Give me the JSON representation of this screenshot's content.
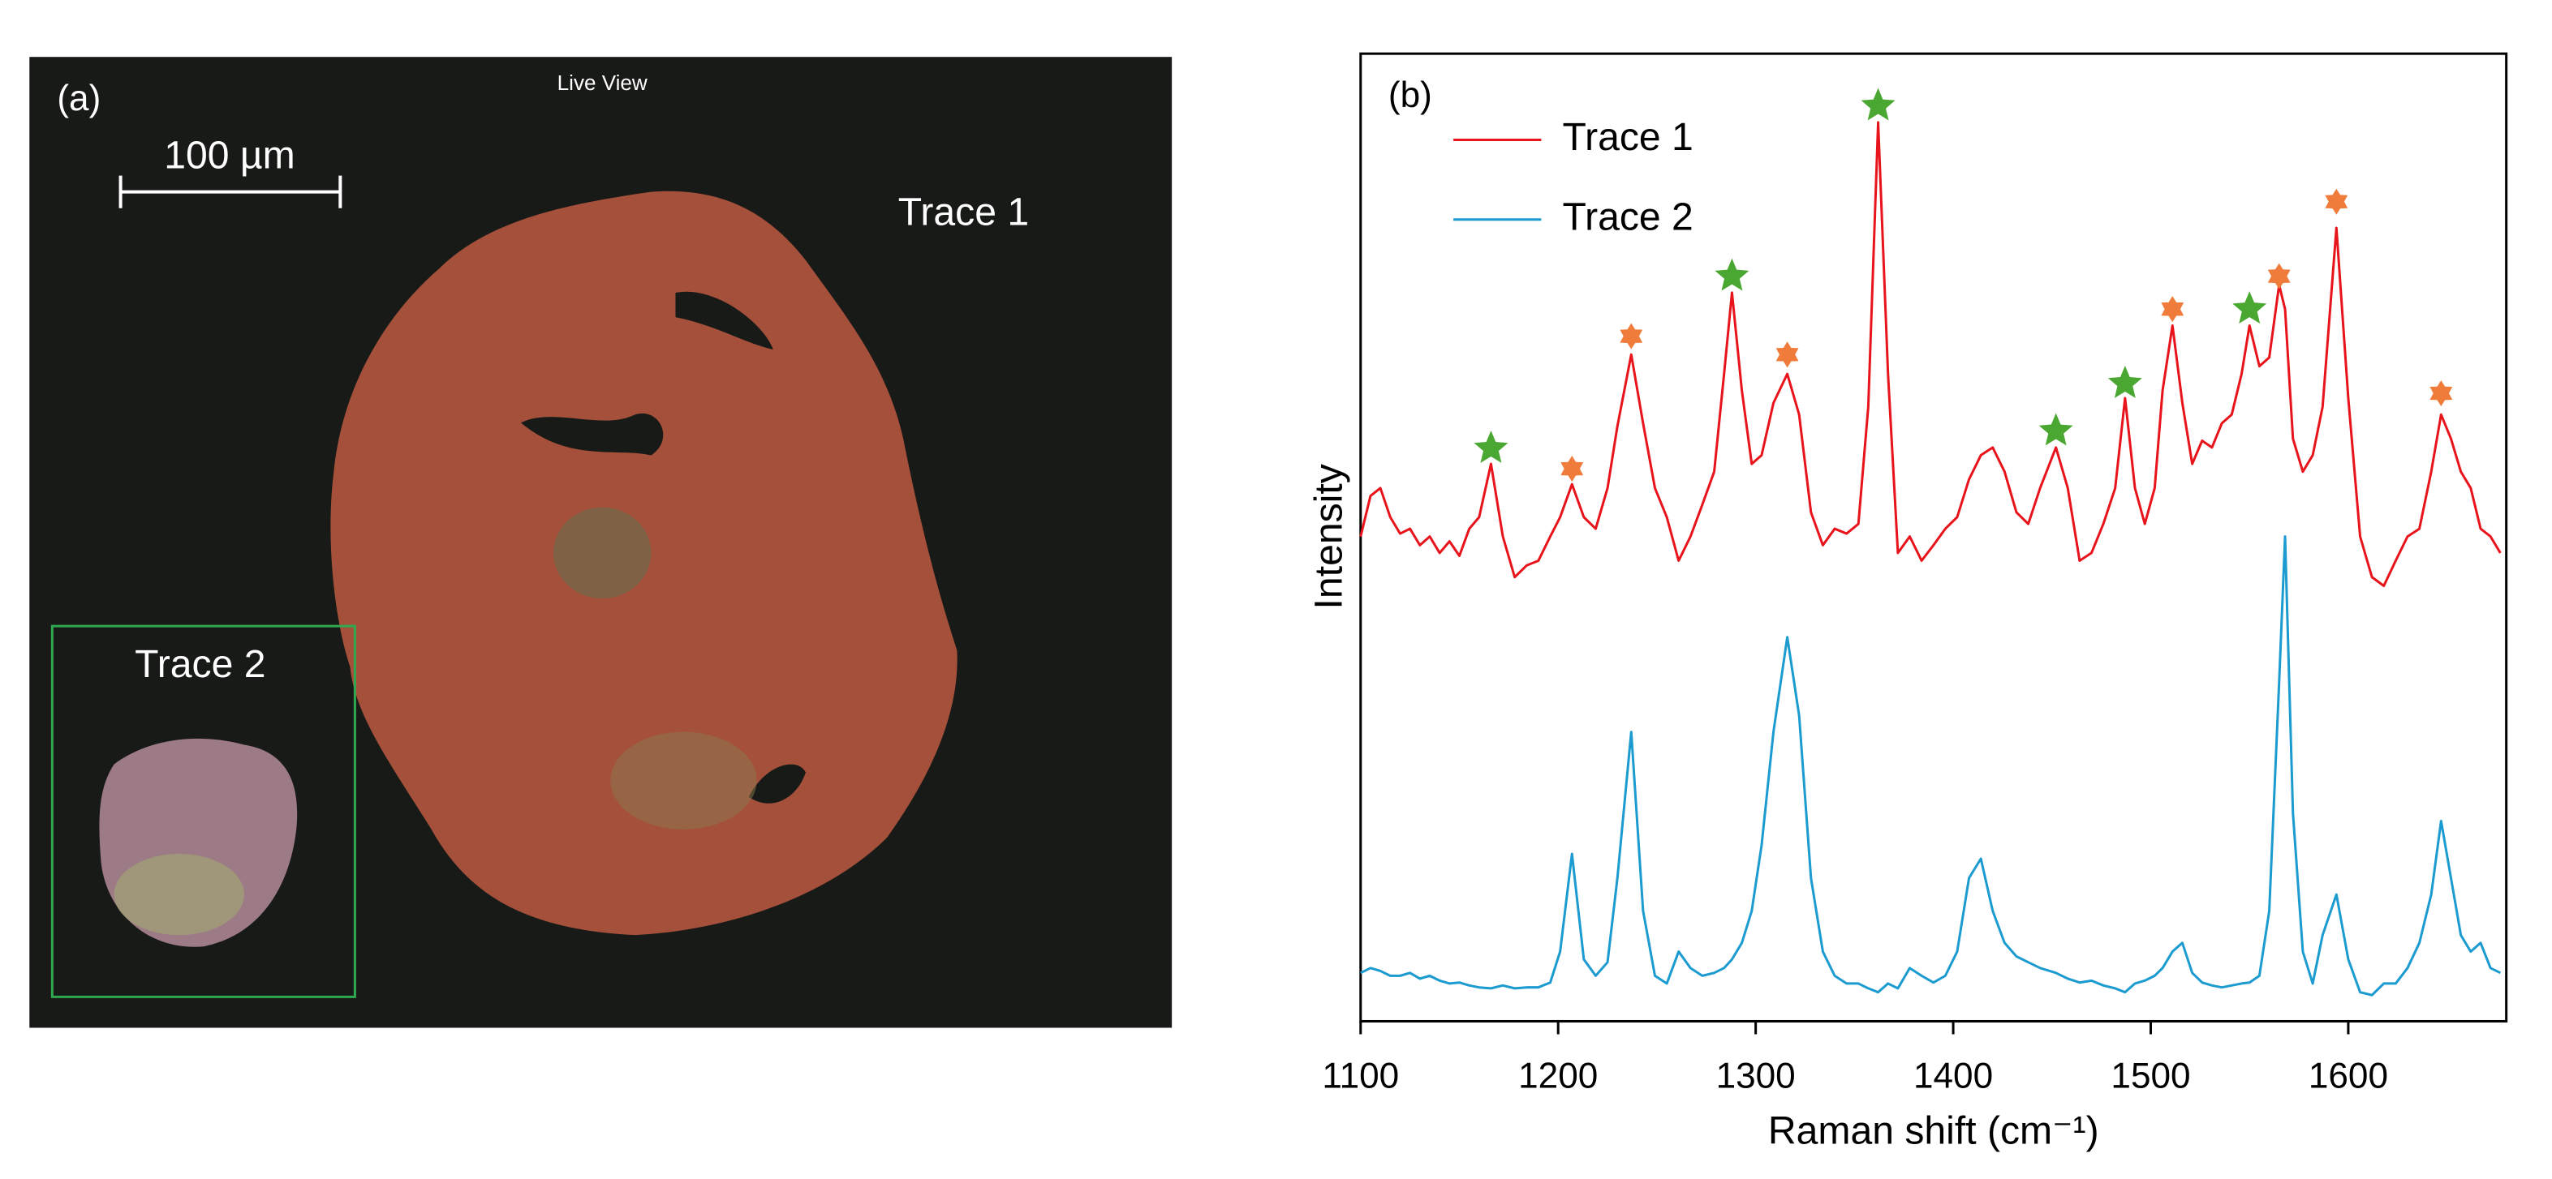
{
  "panel_a": {
    "label": "(a)",
    "caption": "Live View",
    "scale_bar": "100 µm",
    "trace_labels": [
      "Trace 1",
      "Trace 2"
    ]
  },
  "chart_data": {
    "type": "line",
    "panel_label": "(b)",
    "x_label": "Raman shift (cm⁻¹)",
    "y_label": "Intensity",
    "x": [
      1100,
      1105,
      1110,
      1115,
      1120,
      1125,
      1130,
      1135,
      1140,
      1145,
      1150,
      1155,
      1160,
      1166,
      1172,
      1178,
      1184,
      1190,
      1196,
      1201,
      1207,
      1213,
      1219,
      1225,
      1230,
      1237,
      1243,
      1249,
      1255,
      1261,
      1267,
      1273,
      1279,
      1284,
      1288,
      1293,
      1298,
      1303,
      1309,
      1316,
      1322,
      1328,
      1334,
      1340,
      1346,
      1352,
      1357,
      1362,
      1367,
      1372,
      1378,
      1384,
      1390,
      1396,
      1402,
      1408,
      1414,
      1420,
      1426,
      1432,
      1438,
      1444,
      1452,
      1458,
      1464,
      1470,
      1476,
      1482,
      1487,
      1492,
      1497,
      1502,
      1506,
      1511,
      1516,
      1521,
      1526,
      1531,
      1536,
      1541,
      1546,
      1550,
      1555,
      1560,
      1565,
      1568,
      1572,
      1577,
      1582,
      1587,
      1594,
      1600,
      1606,
      1612,
      1618,
      1624,
      1630,
      1636,
      1642,
      1647,
      1652,
      1657,
      1662,
      1667,
      1672,
      1677
    ],
    "series": [
      {
        "name": "Trace 1",
        "color": "#e8141c",
        "values": [
          50.1,
          54.3,
          55.1,
          52.1,
          50.4,
          50.9,
          49.2,
          50.1,
          48.4,
          49.6,
          48.1,
          50.9,
          52.1,
          57.6,
          50.1,
          45.9,
          47.1,
          47.6,
          50.1,
          52.1,
          55.5,
          52.1,
          50.9,
          55.1,
          61.5,
          68.9,
          61.8,
          55.1,
          52.1,
          47.6,
          50.1,
          53.4,
          56.8,
          66.9,
          75.3,
          65.2,
          57.6,
          58.5,
          63.9,
          66.9,
          62.7,
          52.6,
          49.2,
          50.9,
          50.4,
          51.4,
          63.5,
          92.9,
          66.9,
          48.4,
          50.1,
          47.6,
          49.2,
          50.9,
          52.1,
          56.0,
          58.5,
          59.3,
          56.8,
          52.6,
          51.4,
          55.1,
          59.3,
          55.1,
          47.6,
          48.4,
          51.4,
          55.1,
          64.4,
          55.1,
          51.4,
          55.1,
          65.2,
          71.9,
          63.9,
          57.6,
          60.0,
          59.3,
          61.8,
          62.7,
          66.9,
          71.9,
          67.7,
          68.6,
          76.1,
          73.6,
          60.2,
          56.8,
          58.5,
          63.5,
          82.0,
          64.4,
          50.1,
          45.9,
          45.0,
          47.6,
          50.1,
          50.9,
          56.8,
          62.7,
          60.2,
          56.8,
          55.1,
          50.9,
          50.1,
          48.4
        ]
      },
      {
        "name": "Trace 2",
        "color": "#1b9bd0",
        "values": [
          5.0,
          5.5,
          5.2,
          4.7,
          4.7,
          5.0,
          4.4,
          4.7,
          4.2,
          3.9,
          4.0,
          3.7,
          3.5,
          3.4,
          3.7,
          3.4,
          3.5,
          3.5,
          4.0,
          7.2,
          17.3,
          6.4,
          4.7,
          6.1,
          14.8,
          29.9,
          11.4,
          4.7,
          3.9,
          7.2,
          5.5,
          4.7,
          5.0,
          5.5,
          6.4,
          8.1,
          11.4,
          18.2,
          29.9,
          39.7,
          31.6,
          14.8,
          7.2,
          4.7,
          3.9,
          3.9,
          3.4,
          3.0,
          3.9,
          3.4,
          5.5,
          4.7,
          4.0,
          4.7,
          7.2,
          14.8,
          16.8,
          11.4,
          8.1,
          6.7,
          6.1,
          5.5,
          5.0,
          4.4,
          4.0,
          4.2,
          3.7,
          3.4,
          3.0,
          3.9,
          4.2,
          4.7,
          5.5,
          7.2,
          8.1,
          5.0,
          4.0,
          3.7,
          3.5,
          3.7,
          3.9,
          4.0,
          4.7,
          11.4,
          35.0,
          50.1,
          21.5,
          7.2,
          3.9,
          8.9,
          13.1,
          6.4,
          3.0,
          2.7,
          3.9,
          3.9,
          5.5,
          8.1,
          13.1,
          20.7,
          14.8,
          8.9,
          7.2,
          8.1,
          5.5,
          5.0
        ]
      }
    ],
    "markers": [
      {
        "shape": "star",
        "color": "#4aa832",
        "x": [
          1166,
          1288,
          1362,
          1452,
          1487,
          1550
        ],
        "y": [
          59.2,
          77.0,
          94.6,
          61.0,
          65.9,
          73.6
        ]
      },
      {
        "shape": "hexagram",
        "color": "#f07c3c",
        "x": [
          1207,
          1237,
          1316,
          1511,
          1565,
          1594,
          1647
        ],
        "y": [
          57.1,
          70.8,
          68.9,
          73.6,
          77.0,
          84.7,
          64.9
        ]
      }
    ],
    "xlim": [
      1100,
      1680
    ],
    "ylim": [
      0,
      100
    ],
    "xticks": [
      1100,
      1200,
      1300,
      1400,
      1500,
      1600
    ],
    "legend": "top-left",
    "grid": false
  }
}
